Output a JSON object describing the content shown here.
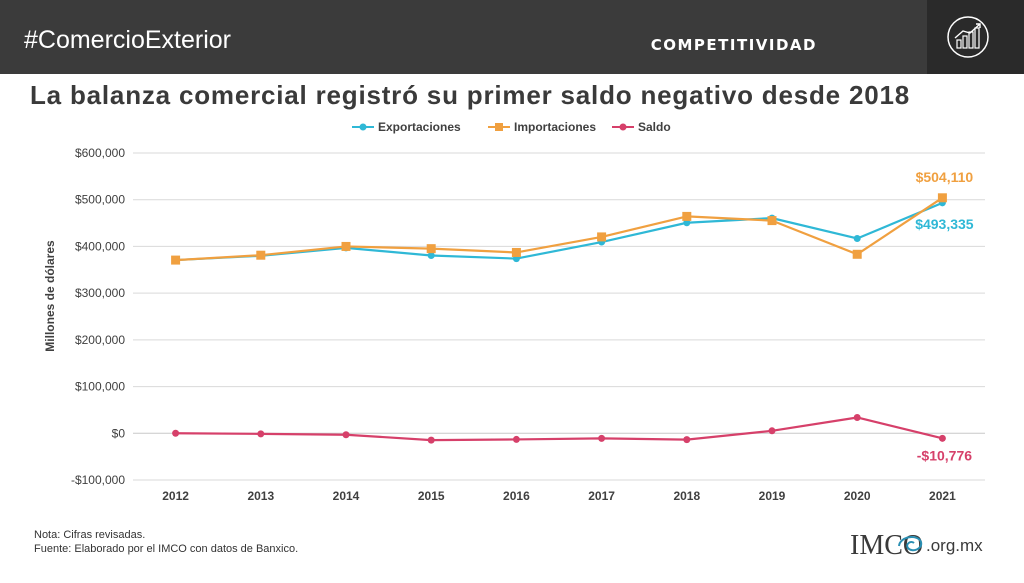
{
  "header": {
    "hashtag": "#ComercioExterior",
    "section": "COMPETITIVIDAD"
  },
  "title": "La balanza comercial registró su primer saldo negativo desde 2018",
  "footer": {
    "note": "Nota: Cifras revisadas.",
    "source": "Fuente: Elaborado por el IMCO con datos de Banxico.",
    "brand": "IMCO",
    "brand_domain": ".org.mx"
  },
  "colors": {
    "exportaciones": "#2fb8d6",
    "importaciones": "#f0a040",
    "saldo": "#d6406a",
    "grid": "#d9d9d9",
    "header_bg": "#3b3b3b"
  },
  "chart_data": {
    "type": "line",
    "ylabel": "Millones de dólares",
    "ylim": [
      -100000,
      600000
    ],
    "yticks": [
      -100000,
      0,
      100000,
      200000,
      300000,
      400000,
      500000,
      600000
    ],
    "ytick_labels": [
      "-$100,000",
      "$0",
      "$100,000",
      "$200,000",
      "$300,000",
      "$400,000",
      "$500,000",
      "$600,000"
    ],
    "x": [
      "2012",
      "2013",
      "2014",
      "2015",
      "2016",
      "2017",
      "2018",
      "2019",
      "2020",
      "2021"
    ],
    "legend_position": "top",
    "grid": true,
    "series": [
      {
        "name": "Exportaciones",
        "marker": "circle",
        "values": [
          370770,
          380015,
          396912,
          380550,
          373939,
          409401,
          450685,
          460604,
          416999,
          493335
        ]
      },
      {
        "name": "Importaciones",
        "marker": "square",
        "values": [
          370752,
          381210,
          399977,
          395232,
          387065,
          420369,
          464277,
          455295,
          383171,
          504110
        ]
      },
      {
        "name": "Saldo",
        "marker": "circle",
        "values": [
          18,
          -1195,
          -3065,
          -14682,
          -13126,
          -10968,
          -13592,
          5309,
          33828,
          -10776
        ]
      }
    ],
    "annotations": [
      {
        "series": "Importaciones",
        "x": "2021",
        "text": "$504,110"
      },
      {
        "series": "Exportaciones",
        "x": "2021",
        "text": "$493,335"
      },
      {
        "series": "Saldo",
        "x": "2021",
        "text": "-$10,776"
      }
    ]
  }
}
